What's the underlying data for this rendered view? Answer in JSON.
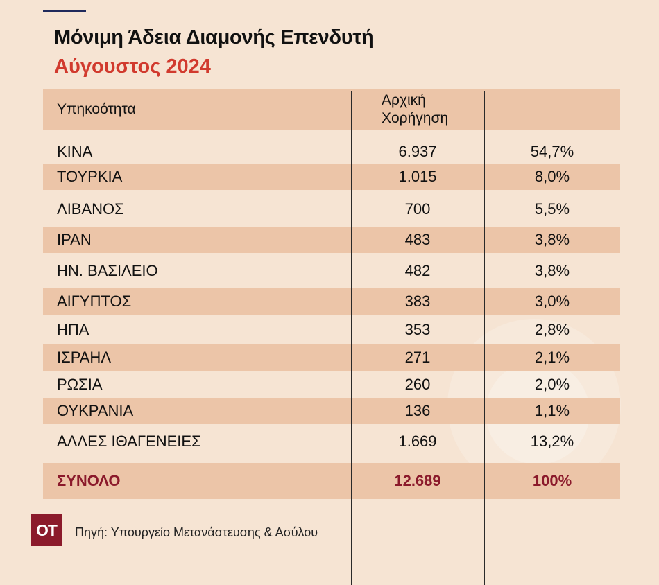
{
  "header": {
    "title": "Μόνιμη Άδεια Διαμονής Επενδυτή",
    "subtitle": "Αύγουστος 2024"
  },
  "table": {
    "col1": "Υπηκοότητα",
    "col2_line1": "Αρχική",
    "col2_line2": "Χορήγηση",
    "rows": [
      {
        "country": "ΚΙΝΑ",
        "value": "6.937",
        "pct": "54,7%"
      },
      {
        "country": "ΤΟΥΡΚΙΑ",
        "value": "1.015",
        "pct": "8,0%"
      },
      {
        "country": "ΛΙΒΑΝΟΣ",
        "value": "700",
        "pct": "5,5%"
      },
      {
        "country": "ΙΡΑΝ",
        "value": "483",
        "pct": "3,8%"
      },
      {
        "country": "ΗΝ. ΒΑΣΙΛΕΙΟ",
        "value": "482",
        "pct": "3,8%"
      },
      {
        "country": "ΑΙΓΥΠΤΟΣ",
        "value": "383",
        "pct": "3,0%"
      },
      {
        "country": "ΗΠΑ",
        "value": "353",
        "pct": "2,8%"
      },
      {
        "country": "ΙΣΡΑΗΛ",
        "value": "271",
        "pct": "2,1%"
      },
      {
        "country": "ΡΩΣΙΑ",
        "value": "260",
        "pct": "2,0%"
      },
      {
        "country": "ΟΥΚΡΑΝΙΑ",
        "value": "136",
        "pct": "1,1%"
      },
      {
        "country": "ΑΛΛΕΣ ΙΘΑΓΕΝΕΙΕΣ",
        "value": "1.669",
        "pct": "13,2%"
      }
    ],
    "total": {
      "country": "ΣΥΝΟΛΟ",
      "value": "12.689",
      "pct": "100%"
    }
  },
  "chart_data": {
    "type": "table",
    "title": "Μόνιμη Άδεια Διαμονής Επενδυτή",
    "subtitle": "Αύγουστος 2024",
    "columns": [
      "Υπηκοότητα",
      "Αρχική Χορήγηση",
      ""
    ],
    "categories": [
      "ΚΙΝΑ",
      "ΤΟΥΡΚΙΑ",
      "ΛΙΒΑΝΟΣ",
      "ΙΡΑΝ",
      "ΗΝ. ΒΑΣΙΛΕΙΟ",
      "ΑΙΓΥΠΤΟΣ",
      "ΗΠΑ",
      "ΙΣΡΑΗΛ",
      "ΡΩΣΙΑ",
      "ΟΥΚΡΑΝΙΑ",
      "ΑΛΛΕΣ ΙΘΑΓΕΝΕΙΕΣ"
    ],
    "values": [
      6937,
      1015,
      700,
      483,
      482,
      383,
      353,
      271,
      260,
      136,
      1669
    ],
    "percentages": [
      54.7,
      8.0,
      5.5,
      3.8,
      3.8,
      3.0,
      2.8,
      2.1,
      2.0,
      1.1,
      13.2
    ],
    "total": 12689,
    "total_pct": 100
  },
  "footer": {
    "logo": "OT",
    "source": "Πηγή: Υπουργείο Μετανάστευσης & Ασύλου"
  },
  "colors": {
    "background": "#f6e4d3",
    "row_shade": "#ecc5a8",
    "accent_red": "#d13a2e",
    "brand": "#8b1a2b",
    "topbar": "#1f2a5c"
  }
}
